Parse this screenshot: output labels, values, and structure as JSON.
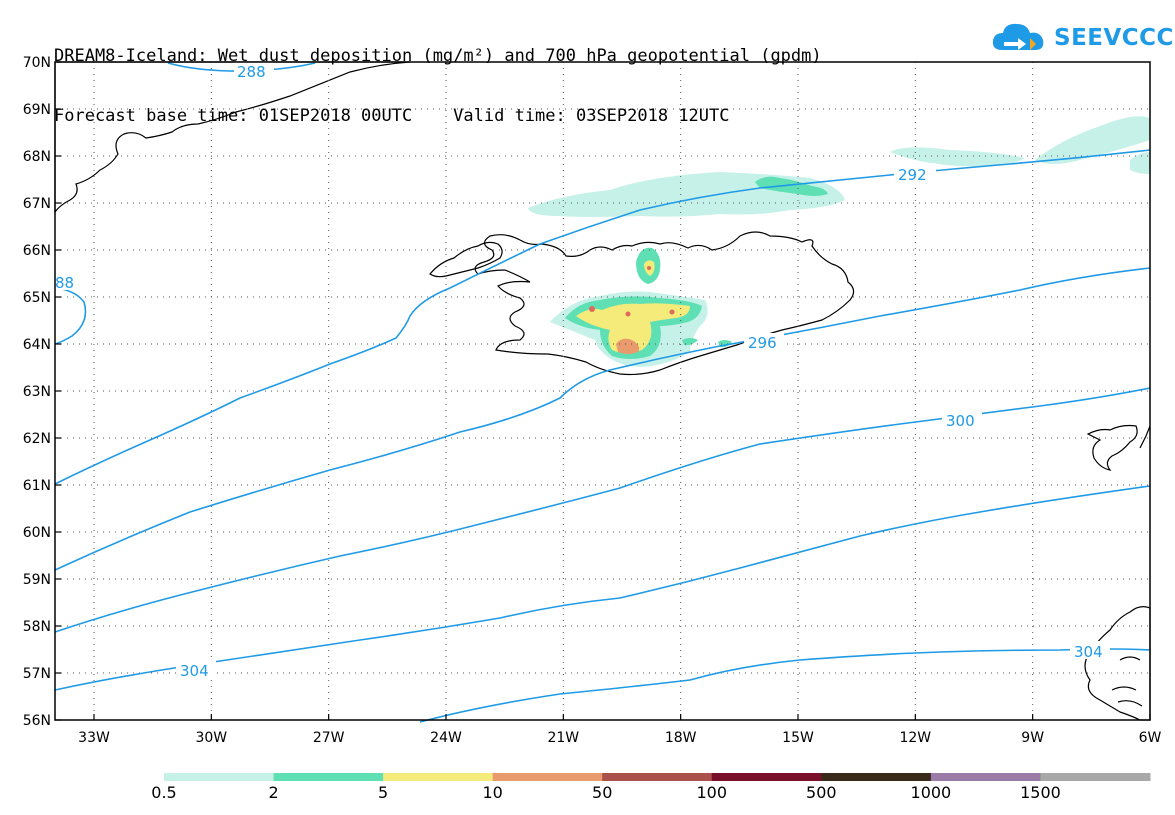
{
  "title": {
    "line1": "DREAM8-Iceland: Wet dust deposition (mg/m²) and 700 hPa geopotential (gpdm)",
    "line2": "Forecast base time: 01SEP2018 00UTC    Valid time: 03SEP2018 12UTC"
  },
  "logo": {
    "text": "SEEVCCC",
    "icon": "cloud-arrow-icon",
    "color": "#1f9ae6"
  },
  "map": {
    "lat_labels": [
      "70N",
      "69N",
      "68N",
      "67N",
      "66N",
      "65N",
      "64N",
      "63N",
      "62N",
      "61N",
      "60N",
      "59N",
      "58N",
      "57N",
      "56N"
    ],
    "lon_labels": [
      "33W",
      "30W",
      "27W",
      "24W",
      "21W",
      "18W",
      "15W",
      "12W",
      "9W",
      "6W"
    ],
    "contour_color": "#1f9ae6",
    "contour_labels": [
      "288",
      "292",
      "296",
      "300",
      "304",
      "304",
      "88"
    ]
  },
  "legend": {
    "colors": [
      "#c6f1e9",
      "#5ee0b4",
      "#f4eb7a",
      "#e99b6e",
      "#a9514a",
      "#7a0f2c",
      "#3a2a1a",
      "#9a7aa6",
      "#a8a8a8"
    ],
    "labels": [
      "0.5",
      "2",
      "5",
      "10",
      "50",
      "100",
      "500",
      "1000",
      "1500"
    ]
  }
}
